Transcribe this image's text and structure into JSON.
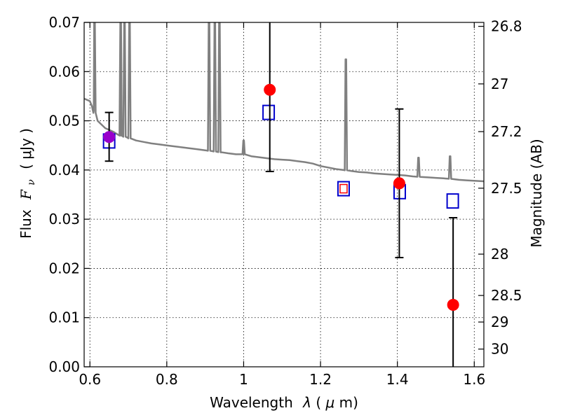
{
  "chart_data": {
    "type": "scatter",
    "xlabel_text": "Wavelength",
    "xlabel_symbol": "λ",
    "xlabel_unit_open": " (",
    "xlabel_unit_mu": "μ",
    "xlabel_unit_close": "m)",
    "ylabel_text": "Flux",
    "ylabel_symbol_F": "F",
    "ylabel_symbol_sub": "ν",
    "ylabel_unit": "( μJy )",
    "y2label": "Magnitude (AB)",
    "xlim": [
      0.585,
      1.625
    ],
    "ylim": [
      0.0,
      0.07
    ],
    "x_ticks": [
      0.6,
      0.8,
      1.0,
      1.2,
      1.4,
      1.6
    ],
    "x_tick_labels": [
      "0.6",
      "0.8",
      "1",
      "1.2",
      "1.4",
      "1.6"
    ],
    "y_ticks": [
      0.0,
      0.01,
      0.02,
      0.03,
      0.04,
      0.05,
      0.06,
      0.07
    ],
    "y_tick_labels": [
      "0.00",
      "0.01",
      "0.02",
      "0.03",
      "0.04",
      "0.05",
      "0.06",
      "0.07"
    ],
    "y2_ticks": [
      {
        "label": "26.8",
        "flux": 0.0692
      },
      {
        "label": "27",
        "flux": 0.0575
      },
      {
        "label": "27.2",
        "flux": 0.0478
      },
      {
        "label": "27.5",
        "flux": 0.0363
      },
      {
        "label": "28",
        "flux": 0.0229
      },
      {
        "label": "28.5",
        "flux": 0.0145
      },
      {
        "label": "29",
        "flux": 0.0091
      },
      {
        "label": "30",
        "flux": 0.0036
      }
    ],
    "grid": true,
    "colors": {
      "spectrum": "#808080",
      "observed": "#ff0000",
      "model": "#0000cc",
      "overlap": "#9900cc",
      "errorbar": "#000000",
      "small_marker": "#ff0000"
    },
    "observed_points": [
      {
        "x": 0.65,
        "y": 0.0467,
        "yerr_low": 0.0418,
        "yerr_high": 0.0517,
        "color": "#9900cc"
      },
      {
        "x": 1.068,
        "y": 0.0563,
        "yerr_low": 0.0397,
        "yerr_high": 0.0705,
        "color": "#ff0000"
      },
      {
        "x": 1.405,
        "y": 0.0373,
        "yerr_low": 0.0222,
        "yerr_high": 0.0524,
        "color": "#ff0000"
      },
      {
        "x": 1.545,
        "y": 0.0126,
        "yerr_low": 0.0,
        "yerr_high": 0.0303,
        "color": "#ff0000"
      }
    ],
    "model_points": [
      {
        "x": 0.65,
        "y": 0.0459
      },
      {
        "x": 1.065,
        "y": 0.0517
      },
      {
        "x": 1.26,
        "y": 0.0362
      },
      {
        "x": 1.406,
        "y": 0.0356
      },
      {
        "x": 1.544,
        "y": 0.0337
      }
    ],
    "extra_marker": {
      "x": 1.26,
      "y": 0.0362
    },
    "spectrum": [
      [
        0.585,
        0.0545
      ],
      [
        0.6,
        0.054
      ],
      [
        0.605,
        0.053
      ],
      [
        0.61,
        0.052
      ],
      [
        0.62,
        0.05
      ],
      [
        0.64,
        0.0485
      ],
      [
        0.66,
        0.0478
      ],
      [
        0.68,
        0.047
      ],
      [
        0.7,
        0.0465
      ],
      [
        0.72,
        0.046
      ],
      [
        0.74,
        0.0457
      ],
      [
        0.76,
        0.0454
      ],
      [
        0.78,
        0.0452
      ],
      [
        0.8,
        0.045
      ],
      [
        0.82,
        0.0448
      ],
      [
        0.84,
        0.0446
      ],
      [
        0.86,
        0.0444
      ],
      [
        0.88,
        0.0442
      ],
      [
        0.9,
        0.044
      ],
      [
        0.92,
        0.0438
      ],
      [
        0.94,
        0.0436
      ],
      [
        0.96,
        0.0434
      ],
      [
        0.98,
        0.0432
      ],
      [
        1.0,
        0.0432
      ],
      [
        1.02,
        0.0428
      ],
      [
        1.04,
        0.0426
      ],
      [
        1.06,
        0.0424
      ],
      [
        1.08,
        0.0422
      ],
      [
        1.1,
        0.0421
      ],
      [
        1.12,
        0.042
      ],
      [
        1.14,
        0.0418
      ],
      [
        1.16,
        0.0416
      ],
      [
        1.18,
        0.0413
      ],
      [
        1.2,
        0.0408
      ],
      [
        1.22,
        0.0405
      ],
      [
        1.24,
        0.0402
      ],
      [
        1.26,
        0.04
      ],
      [
        1.28,
        0.0398
      ],
      [
        1.3,
        0.0396
      ],
      [
        1.32,
        0.0395
      ],
      [
        1.34,
        0.0393
      ],
      [
        1.36,
        0.0392
      ],
      [
        1.38,
        0.0391
      ],
      [
        1.4,
        0.039
      ],
      [
        1.42,
        0.0389
      ],
      [
        1.44,
        0.0387
      ],
      [
        1.46,
        0.0386
      ],
      [
        1.48,
        0.0385
      ],
      [
        1.5,
        0.0384
      ],
      [
        1.52,
        0.0383
      ],
      [
        1.54,
        0.0382
      ],
      [
        1.56,
        0.038
      ],
      [
        1.58,
        0.0379
      ],
      [
        1.6,
        0.0378
      ],
      [
        1.625,
        0.0377
      ]
    ],
    "emission_lines": [
      {
        "x": 0.612,
        "peak": 0.07
      },
      {
        "x": 0.68,
        "peak": 0.07
      },
      {
        "x": 0.69,
        "peak": 0.07
      },
      {
        "x": 0.703,
        "peak": 0.07
      },
      {
        "x": 0.91,
        "peak": 0.07
      },
      {
        "x": 0.925,
        "peak": 0.07
      },
      {
        "x": 0.937,
        "peak": 0.07
      },
      {
        "x": 1.0,
        "peak": 0.046
      },
      {
        "x": 1.266,
        "peak": 0.0625
      },
      {
        "x": 1.455,
        "peak": 0.0425
      },
      {
        "x": 1.537,
        "peak": 0.0428
      }
    ]
  }
}
